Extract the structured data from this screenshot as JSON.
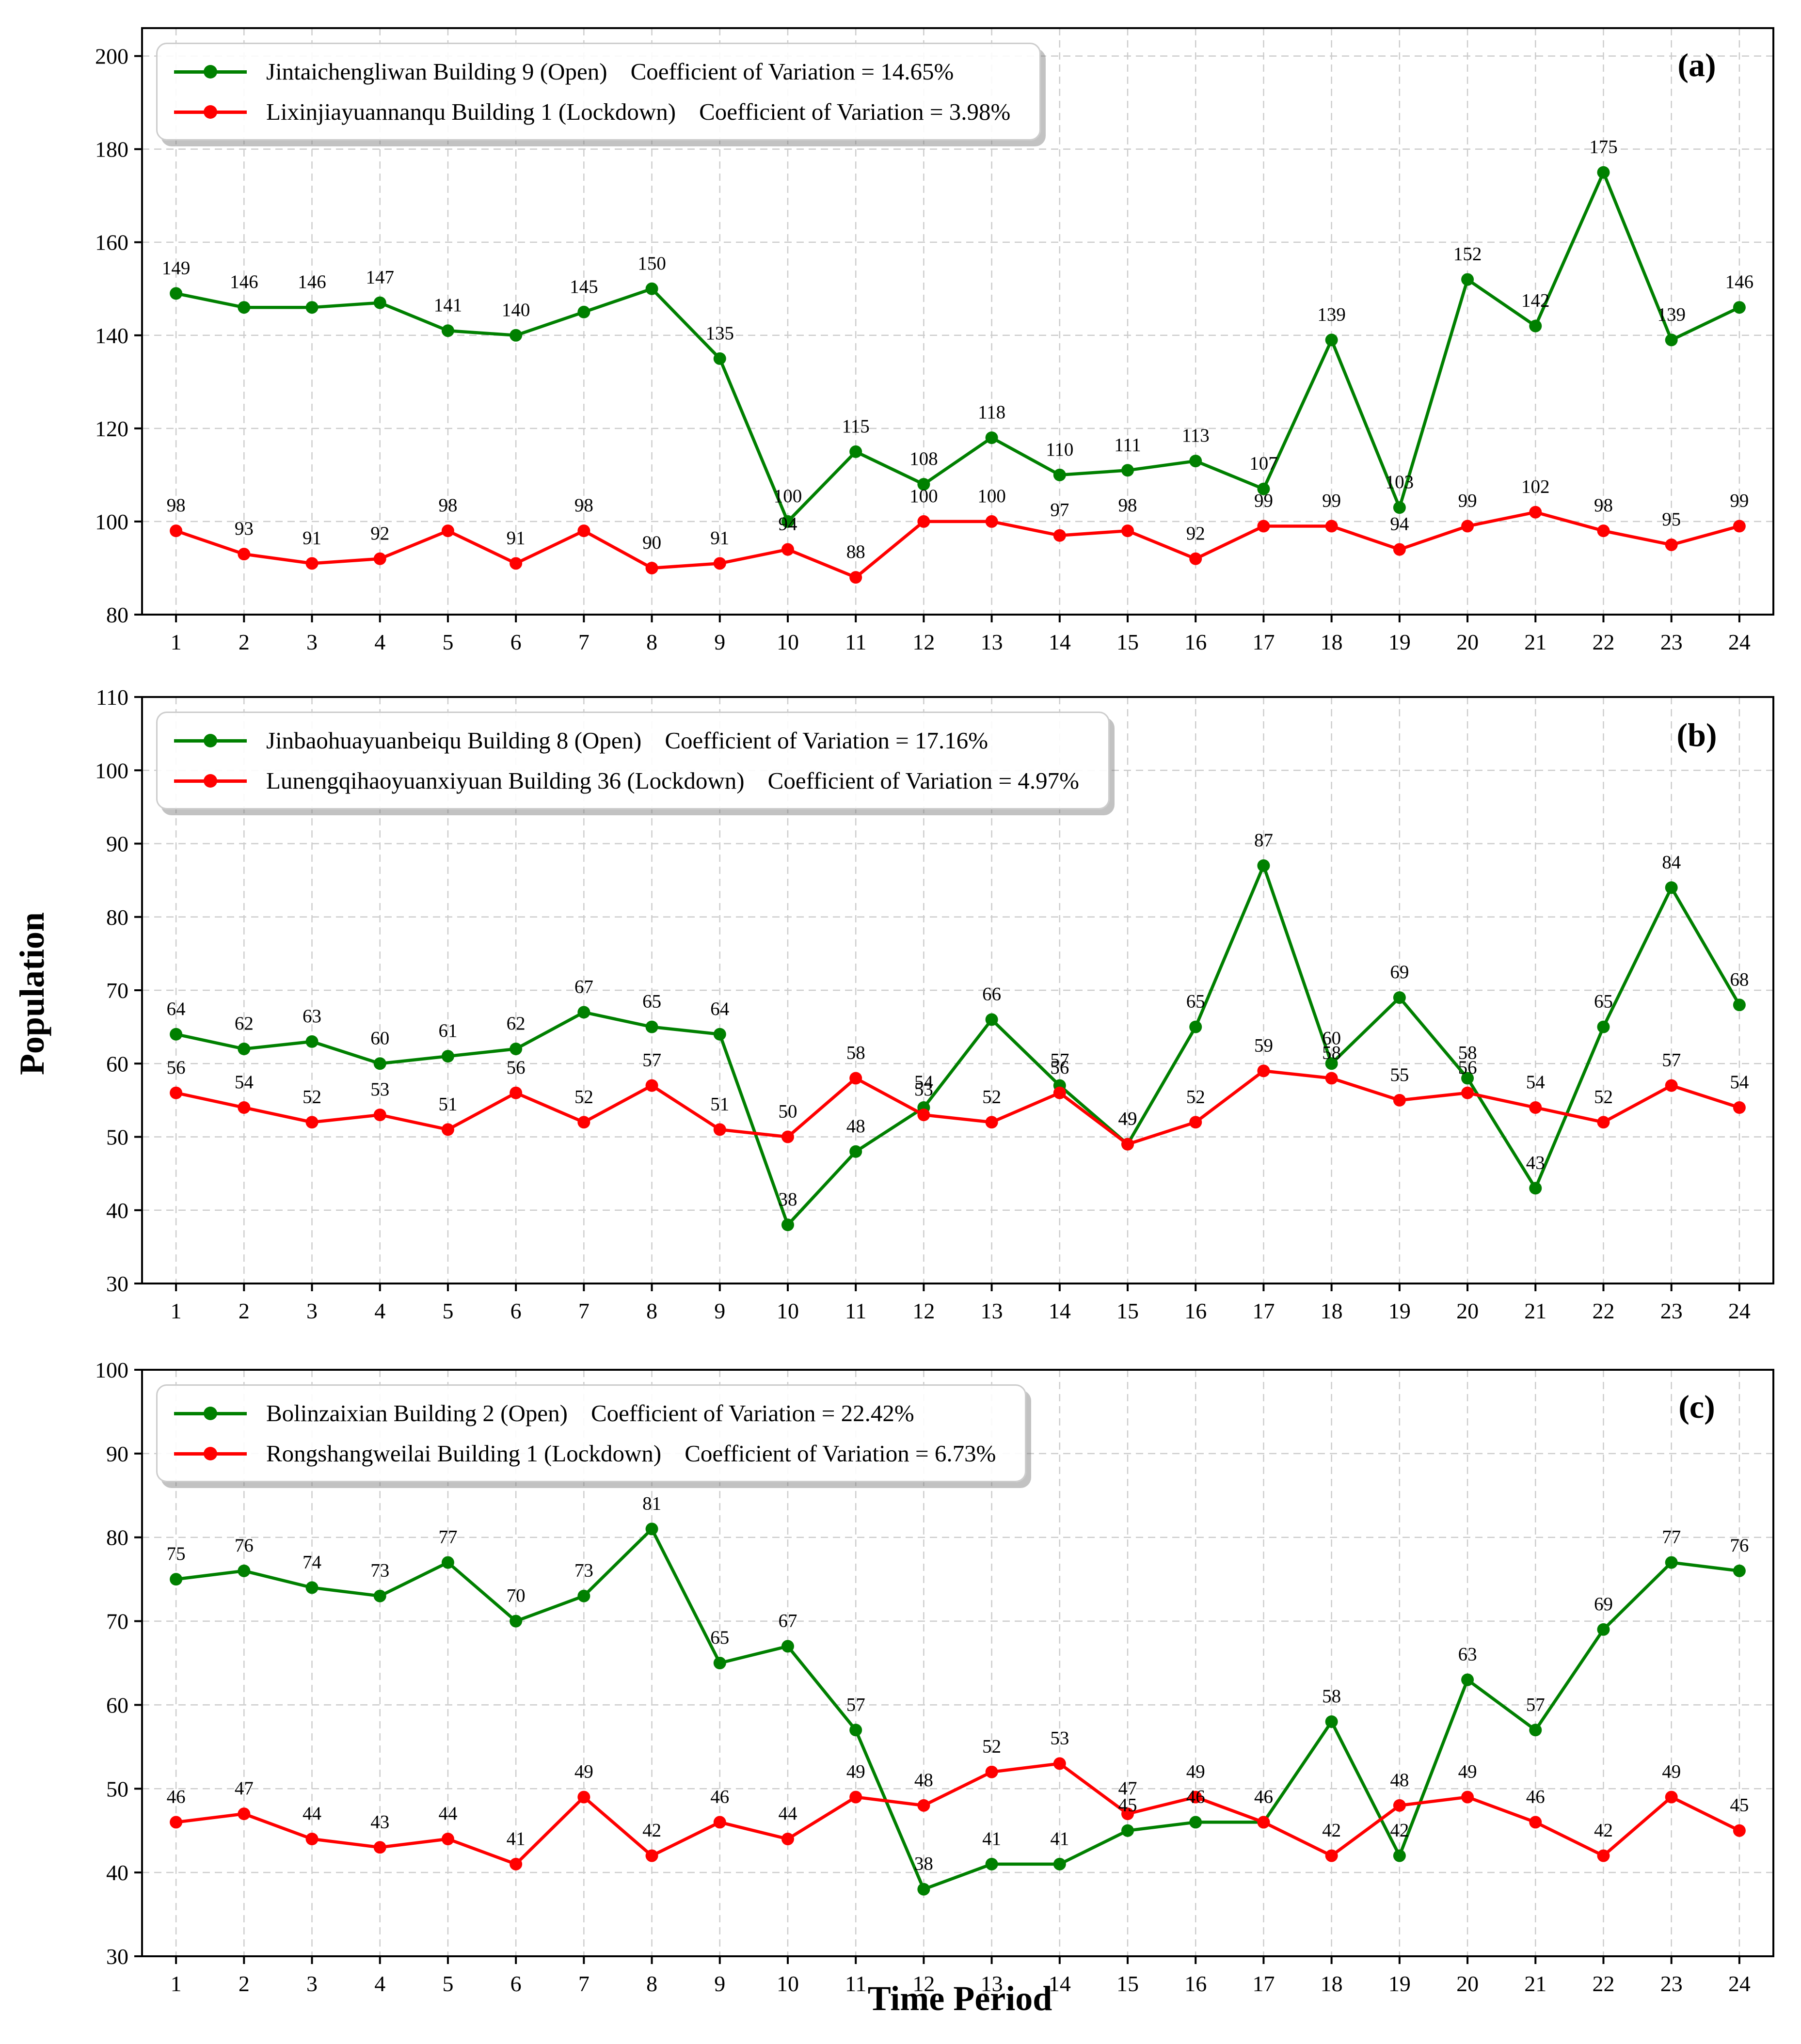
{
  "labels": {
    "y_title": "Population",
    "x_title": "Time Period"
  },
  "colors": {
    "open_series": "#008000",
    "lockdown_series": "#ff0000",
    "grid": "#cccccc",
    "frame": "#000000",
    "point_label": "#000000"
  },
  "chart_data": [
    {
      "type": "line",
      "corner_label": "(a)",
      "x": [
        1,
        2,
        3,
        4,
        5,
        6,
        7,
        8,
        9,
        10,
        11,
        12,
        13,
        14,
        15,
        16,
        17,
        18,
        19,
        20,
        21,
        22,
        23,
        24
      ],
      "xlabel": "Time Period",
      "ylabel": "Population",
      "ylim": [
        80,
        206
      ],
      "yticks": [
        80,
        100,
        120,
        140,
        160,
        180,
        200
      ],
      "grid": true,
      "legend_position": "upper-left",
      "series": [
        {
          "name": "Jintaichengliwan Building 9 (Open)",
          "cv_label": "Coefficient of Variation = 14.65%",
          "color": "#008000",
          "values": [
            149,
            146,
            146,
            147,
            141,
            140,
            145,
            150,
            135,
            100,
            115,
            108,
            118,
            110,
            111,
            113,
            107,
            139,
            103,
            152,
            142,
            175,
            139,
            146
          ]
        },
        {
          "name": "Lixinjiayuannanqu Building 1 (Lockdown)",
          "cv_label": "Coefficient of Variation = 3.98%",
          "color": "#ff0000",
          "values": [
            98,
            93,
            91,
            92,
            98,
            91,
            98,
            90,
            91,
            94,
            88,
            100,
            100,
            97,
            98,
            92,
            99,
            99,
            94,
            99,
            102,
            98,
            95,
            99
          ]
        }
      ]
    },
    {
      "type": "line",
      "corner_label": "(b)",
      "x": [
        1,
        2,
        3,
        4,
        5,
        6,
        7,
        8,
        9,
        10,
        11,
        12,
        13,
        14,
        15,
        16,
        17,
        18,
        19,
        20,
        21,
        22,
        23,
        24
      ],
      "xlabel": "Time Period",
      "ylabel": "Population",
      "ylim": [
        30,
        110
      ],
      "yticks": [
        30,
        40,
        50,
        60,
        70,
        80,
        90,
        100,
        110
      ],
      "grid": true,
      "legend_position": "upper-left",
      "series": [
        {
          "name": "Jinbaohuayuanbeiqu Building 8 (Open)",
          "cv_label": "Coefficient of Variation = 17.16%",
          "color": "#008000",
          "values": [
            64,
            62,
            63,
            60,
            61,
            62,
            67,
            65,
            64,
            38,
            48,
            54,
            66,
            57,
            49,
            65,
            87,
            60,
            69,
            58,
            43,
            65,
            84,
            68
          ]
        },
        {
          "name": "Lunengqihaoyuanxiyuan Building 36 (Lockdown)",
          "cv_label": "Coefficient of Variation = 4.97%",
          "color": "#ff0000",
          "values": [
            56,
            54,
            52,
            53,
            51,
            56,
            52,
            57,
            51,
            50,
            58,
            53,
            52,
            56,
            49,
            52,
            59,
            58,
            55,
            56,
            54,
            52,
            57,
            54
          ]
        }
      ]
    },
    {
      "type": "line",
      "corner_label": "(c)",
      "x": [
        1,
        2,
        3,
        4,
        5,
        6,
        7,
        8,
        9,
        10,
        11,
        12,
        13,
        14,
        15,
        16,
        17,
        18,
        19,
        20,
        21,
        22,
        23,
        24
      ],
      "xlabel": "Time Period",
      "ylabel": "Population",
      "ylim": [
        30,
        100
      ],
      "yticks": [
        30,
        40,
        50,
        60,
        70,
        80,
        90,
        100
      ],
      "grid": true,
      "legend_position": "upper-left",
      "series": [
        {
          "name": "Bolinzaixian Building 2 (Open)",
          "cv_label": "Coefficient of Variation = 22.42%",
          "color": "#008000",
          "values": [
            75,
            76,
            74,
            73,
            77,
            70,
            73,
            81,
            65,
            67,
            57,
            38,
            41,
            41,
            45,
            46,
            46,
            58,
            42,
            63,
            57,
            69,
            77,
            76
          ]
        },
        {
          "name": "Rongshangweilai Building 1 (Lockdown)",
          "cv_label": "Coefficient of Variation = 6.73%",
          "color": "#ff0000",
          "values": [
            46,
            47,
            44,
            43,
            44,
            41,
            49,
            42,
            46,
            44,
            49,
            48,
            52,
            53,
            47,
            49,
            46,
            42,
            48,
            49,
            46,
            42,
            49,
            45
          ]
        }
      ]
    }
  ]
}
